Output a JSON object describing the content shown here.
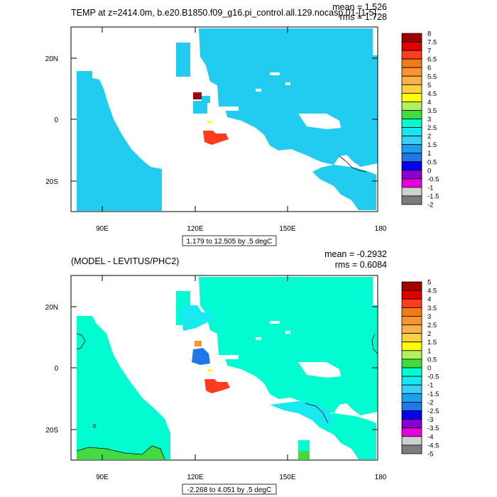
{
  "chart_data": [
    {
      "type": "heatmap",
      "title": "TEMP at z=2414.0m, b.e20.B1850.f09_g16.pi_control.all.129.nocasp.01-[1-5]",
      "stats": {
        "mean": "mean = 1.526",
        "rms": "rms = 1.728"
      },
      "x_ticks": [
        "90E",
        "120E",
        "150E",
        "180"
      ],
      "y_ticks": [
        "20N",
        "0",
        "20S"
      ],
      "xlim": [
        80,
        180
      ],
      "ylim": [
        -30,
        30
      ],
      "range_label": "1.179 to 12.505 by .5 degC",
      "colorbar": {
        "labels": [
          "8",
          "7.5",
          "7",
          "6.5",
          "6",
          "5.5",
          "5",
          "4.5",
          "4",
          "3.5",
          "3",
          "2.5",
          "2",
          "1.5",
          "1",
          "0.5",
          "0",
          "-0.5",
          "-1",
          "-1.5",
          "-2"
        ],
        "colors": [
          "#a00000",
          "#e00000",
          "#ff3b1e",
          "#f07a18",
          "#f89530",
          "#f8b048",
          "#fcd040",
          "#ffff00",
          "#b0f060",
          "#40dc40",
          "#00fcd0",
          "#18e8f0",
          "#38d0f8",
          "#1ea0f0",
          "#1e78e8",
          "#0000ee",
          "#8a00d0",
          "#e800d8",
          "#d0d0d0",
          "#7c7c7c"
        ]
      },
      "field_color": "#22ccf0"
    },
    {
      "type": "heatmap",
      "title": "(MODEL - LEVITUS/PHC2)",
      "stats": {
        "mean": "mean = -0.2932",
        "rms": "rms = 0.6084"
      },
      "x_ticks": [
        "90E",
        "120E",
        "150E",
        "180"
      ],
      "y_ticks": [
        "20N",
        "0",
        "20S"
      ],
      "xlim": [
        80,
        180
      ],
      "ylim": [
        -30,
        30
      ],
      "range_label": "-2.268 to 4.051 by .5 degC",
      "colorbar": {
        "labels": [
          "5",
          "4.5",
          "4",
          "3.5",
          "3",
          "2.5",
          "2",
          "1.5",
          "1",
          "0.5",
          "0",
          "-0.5",
          "-1",
          "-1.5",
          "-2",
          "-2.5",
          "-3",
          "-3.5",
          "-4",
          "-4.5",
          "-5"
        ],
        "colors": [
          "#a00000",
          "#e00000",
          "#ff3b1e",
          "#f07a18",
          "#f89530",
          "#f8b048",
          "#fcd040",
          "#ffff00",
          "#b0f060",
          "#40dc40",
          "#00fcd0",
          "#18e8f0",
          "#38d0f8",
          "#1ea0f0",
          "#1e78e8",
          "#0000ee",
          "#8a00d0",
          "#e800d8",
          "#d0d0d0",
          "#7c7c7c"
        ]
      },
      "field_color": "#00fcd0"
    }
  ]
}
